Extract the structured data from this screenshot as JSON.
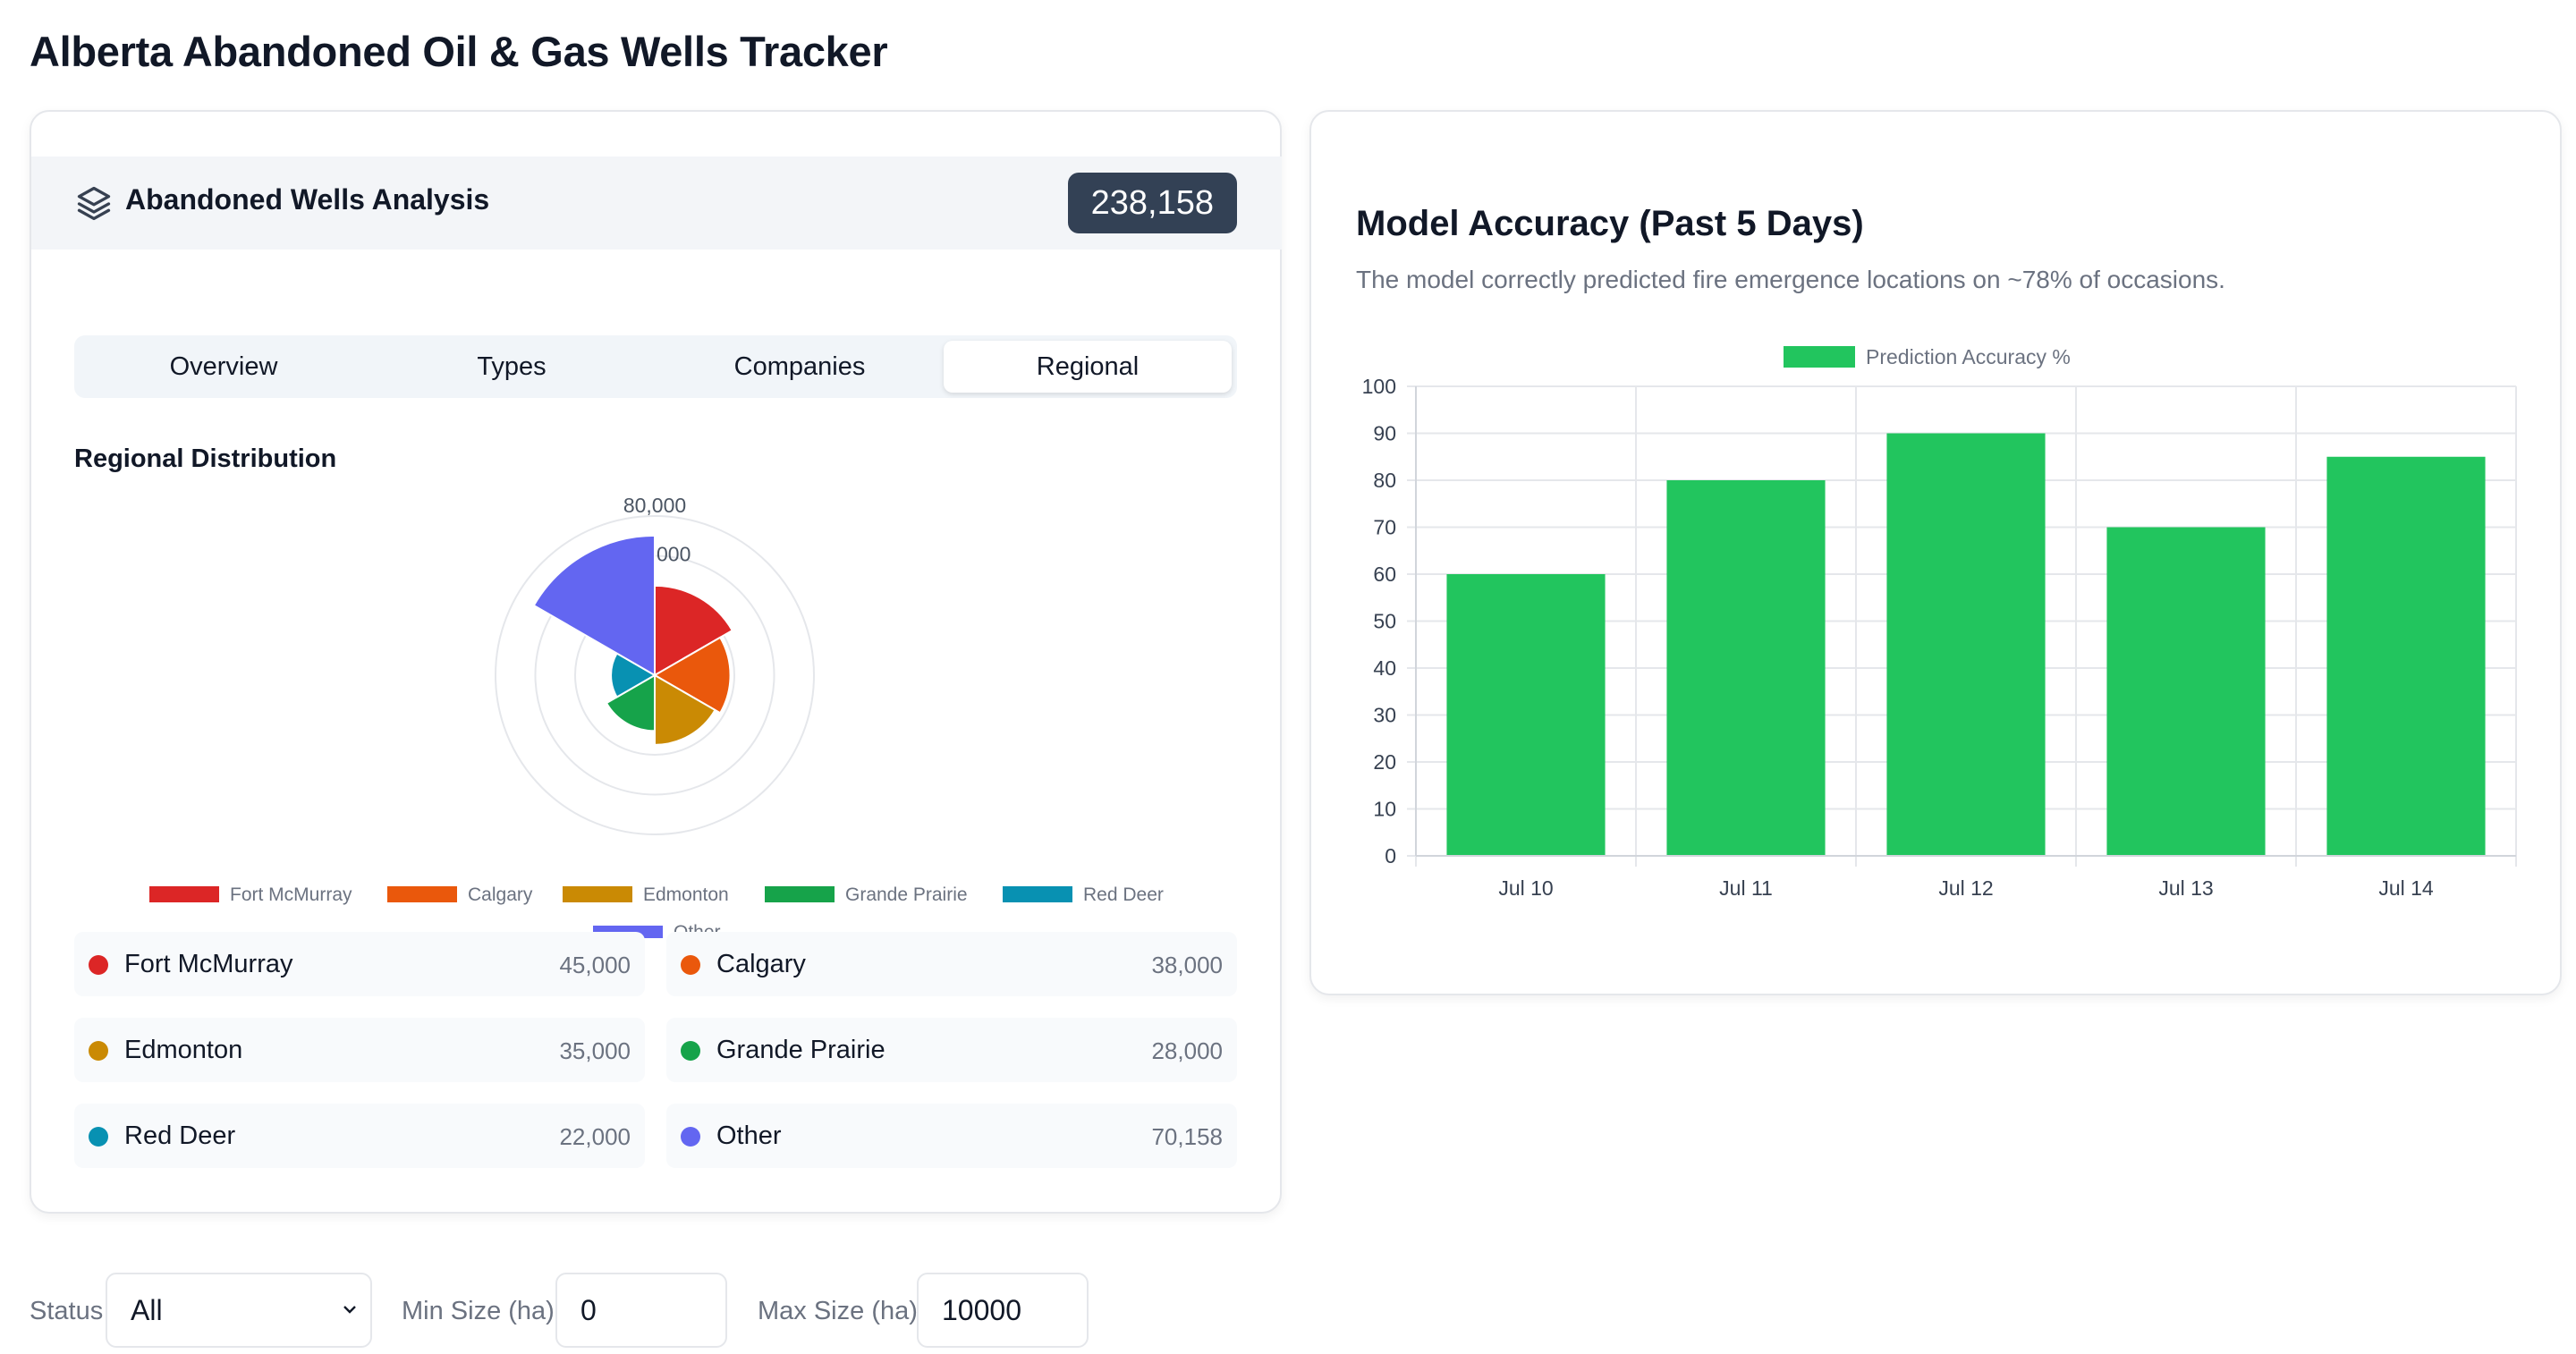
{
  "page": {
    "title": "Alberta Abandoned Oil & Gas Wells Tracker"
  },
  "left_card": {
    "header_title": "Abandoned Wells Analysis",
    "total_count": "238,158",
    "tabs": [
      {
        "label": "Overview",
        "active": false
      },
      {
        "label": "Types",
        "active": false
      },
      {
        "label": "Companies",
        "active": false
      },
      {
        "label": "Regional",
        "active": true
      }
    ],
    "section_title": "Regional Distribution",
    "regions": [
      {
        "name": "Fort McMurray",
        "value": "45,000",
        "color": "#dc2626"
      },
      {
        "name": "Calgary",
        "value": "38,000",
        "color": "#ea580c"
      },
      {
        "name": "Edmonton",
        "value": "35,000",
        "color": "#ca8a04"
      },
      {
        "name": "Grande Prairie",
        "value": "28,000",
        "color": "#16a34a"
      },
      {
        "name": "Red Deer",
        "value": "22,000",
        "color": "#0891b2"
      },
      {
        "name": "Other",
        "value": "70,158",
        "color": "#6366f1"
      }
    ]
  },
  "polar_chart": {
    "type": "polar-area",
    "values": [
      45000,
      38000,
      35000,
      28000,
      22000,
      70158
    ],
    "labels": [
      "Fort McMurray",
      "Calgary",
      "Edmonton",
      "Grande Prairie",
      "Red Deer",
      "Other"
    ],
    "r_max": 80000,
    "ticks": [
      "80,000",
      "000"
    ],
    "legend_labels": [
      "Fort McMurray",
      "Calgary",
      "Edmonton",
      "Grande Prairie",
      "Red Deer",
      "Other"
    ]
  },
  "right_card": {
    "title": "Model Accuracy (Past 5 Days)",
    "subtitle": "The model correctly predicted fire emergence locations on ~78% of occasions."
  },
  "chart_data": {
    "type": "bar",
    "categories": [
      "Jul 10",
      "Jul 11",
      "Jul 12",
      "Jul 13",
      "Jul 14"
    ],
    "series": [
      {
        "name": "Prediction Accuracy %",
        "values": [
          60,
          80,
          90,
          70,
          85
        ],
        "color": "#22c55e"
      }
    ],
    "ylim": [
      0,
      100
    ],
    "yticks": [
      "0",
      "10",
      "20",
      "30",
      "40",
      "50",
      "60",
      "70",
      "80",
      "90",
      "100"
    ],
    "grid": true,
    "legend": "top"
  },
  "filters": {
    "status_label": "Status",
    "status_value": "All",
    "min_label": "Min Size (ha)",
    "min_value": "0",
    "max_label": "Max Size (ha)",
    "max_value": "10000"
  }
}
